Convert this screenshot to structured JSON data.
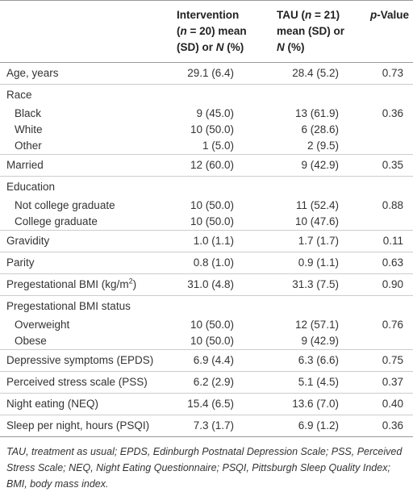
{
  "table": {
    "header": [
      [
        "Intervention",
        "(",
        "n",
        " = 20) mean",
        "(SD) or ",
        "N",
        " (%)"
      ],
      [
        "TAU (",
        "n",
        " = 21)",
        "mean (SD) or",
        "N",
        " (%)"
      ],
      [
        "p",
        "-Value"
      ]
    ],
    "rows": [
      [
        "Age, years",
        "29.1 (6.4)",
        "28.4 (5.2)",
        "0.73"
      ],
      {
        "label": "Race",
        "rows": [
          [
            "Black",
            "9 (45.0)",
            "13 (61.9)",
            "0.36"
          ],
          [
            "White",
            "10 (50.0)",
            "6 (28.6)",
            null
          ],
          [
            "Other",
            "1 (5.0)",
            "2 (9.5)",
            null
          ]
        ]
      },
      [
        "Married",
        "12 (60.0)",
        "9 (42.9)",
        "0.35"
      ],
      {
        "label": "Education",
        "rows": [
          [
            "Not college graduate",
            "10 (50.0)",
            "11 (52.4)",
            "0.88"
          ],
          [
            "College graduate",
            "10 (50.0)",
            "10 (47.6)",
            null
          ]
        ]
      },
      [
        "Gravidity",
        "1.0 (1.1)",
        "1.7 (1.7)",
        "0.11"
      ],
      [
        "Parity",
        "0.8 (1.0)",
        "0.9 (1.1)",
        "0.63"
      ],
      [
        [
          "Pregestational BMI (kg/m",
          "2",
          ")"
        ],
        "31.0 (4.8)",
        "31.3 (7.5)",
        "0.90"
      ],
      {
        "label": "Pregestational BMI status",
        "rows": [
          [
            "Overweight",
            "10 (50.0)",
            "12 (57.1)",
            "0.76"
          ],
          [
            "Obese",
            "10 (50.0)",
            "9 (42.9)",
            null
          ]
        ]
      },
      [
        "Depressive symptoms (EPDS)",
        "6.9 (4.4)",
        "6.3 (6.6)",
        "0.75"
      ],
      [
        "Perceived stress scale (PSS)",
        "6.2 (2.9)",
        "5.1 (4.5)",
        "0.37"
      ],
      [
        "Night eating (NEQ)",
        "15.4 (6.5)",
        "13.6 (7.0)",
        "0.40"
      ],
      [
        "Sleep per night, hours (PSQI)",
        "7.3 (1.7)",
        "6.9 (1.2)",
        "0.36"
      ]
    ],
    "footnote": "TAU, treatment as usual; EPDS, Edinburgh Postnatal Depression Scale; PSS, Perceived Stress Scale; NEQ, Night Eating Questionnaire; PSQI, Pittsburgh Sleep Quality Index; BMI, body mass index."
  }
}
